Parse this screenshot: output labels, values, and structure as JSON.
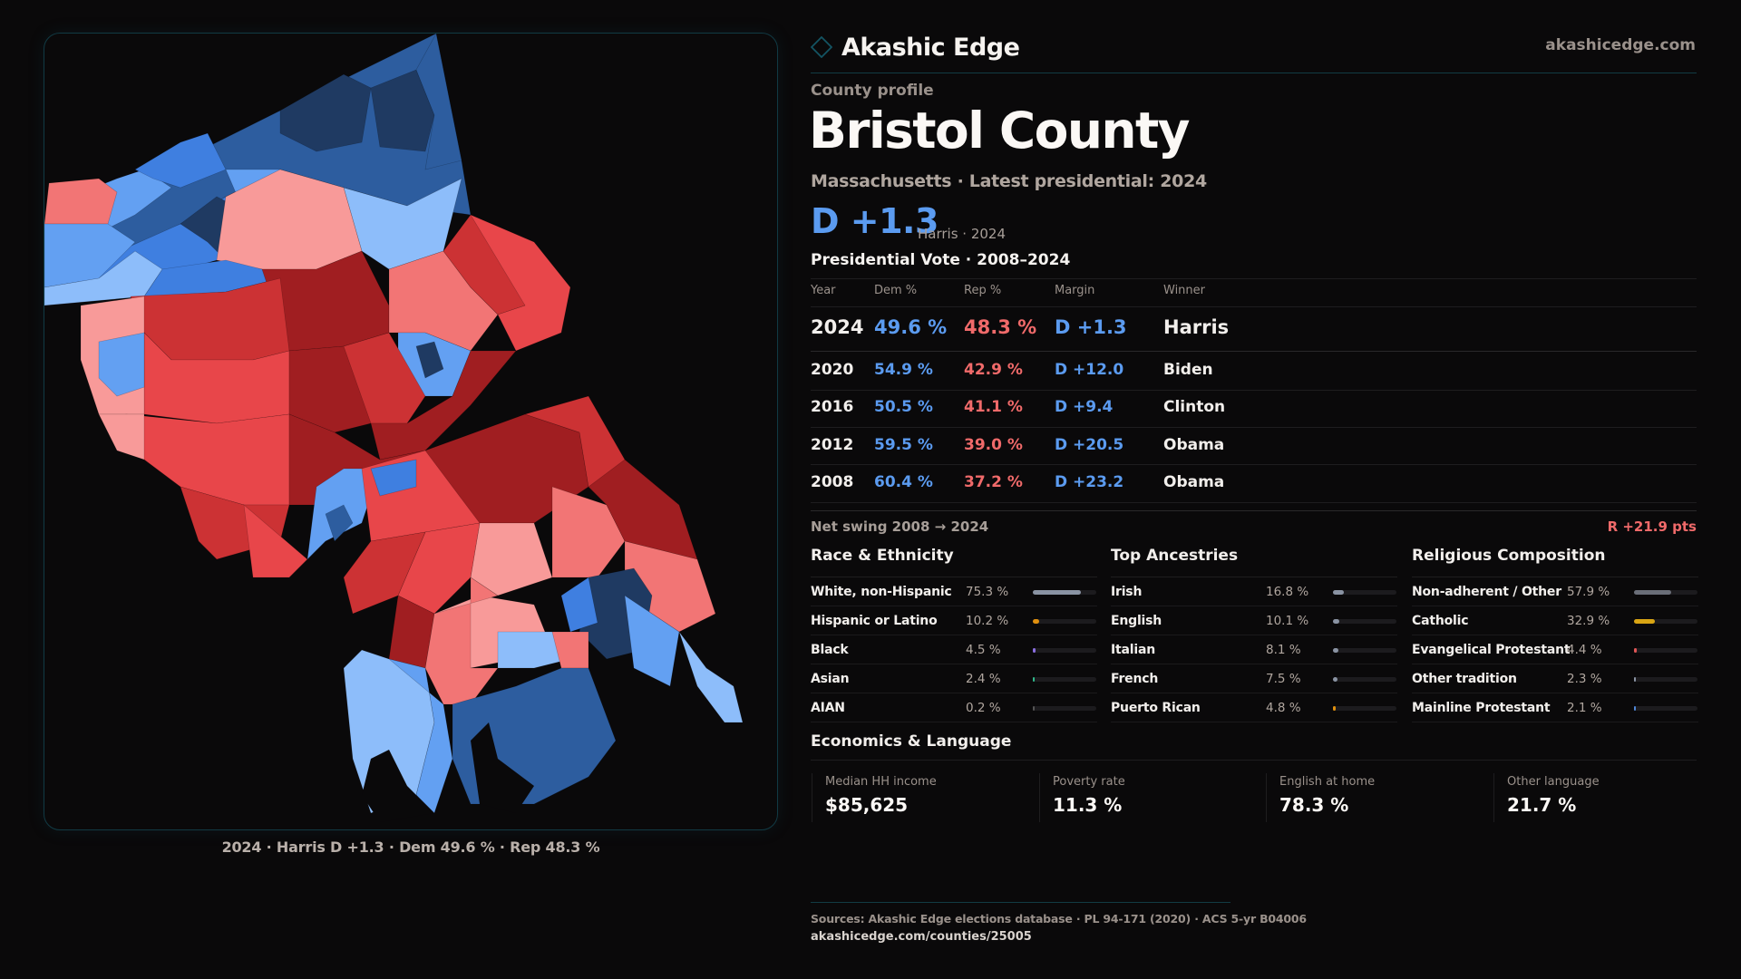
{
  "brand": {
    "name": "Akashic Edge",
    "url": "akashicedge.com",
    "logo_icon": "diamond-outline-icon",
    "accent": "#123c44"
  },
  "header": {
    "eyebrow": "County profile",
    "title": "Bristol County",
    "subtitle": "Massachusetts · Latest presidential: 2024",
    "margin": "D +1.3",
    "margin_sub": "Harris · 2024"
  },
  "colors": {
    "dem": "#5b9bf0",
    "rep": "#f06a6a"
  },
  "votes": {
    "title": "Presidential Vote · 2008–2024",
    "headers": [
      "Year",
      "Dem %",
      "Rep %",
      "Margin",
      "Winner"
    ],
    "rows": [
      {
        "year": "2024",
        "dem": "49.6 %",
        "rep": "48.3 %",
        "margin": "D +1.3",
        "winner": "Harris"
      },
      {
        "year": "2020",
        "dem": "54.9 %",
        "rep": "42.9 %",
        "margin": "D +12.0",
        "winner": "Biden"
      },
      {
        "year": "2016",
        "dem": "50.5 %",
        "rep": "41.1 %",
        "margin": "D +9.4",
        "winner": "Clinton"
      },
      {
        "year": "2012",
        "dem": "59.5 %",
        "rep": "39.0 %",
        "margin": "D +20.5",
        "winner": "Obama"
      },
      {
        "year": "2008",
        "dem": "60.4 %",
        "rep": "37.2 %",
        "margin": "D +23.2",
        "winner": "Obama"
      }
    ],
    "swing_label": "Net swing 2008 → 2024",
    "swing_value": "R +21.9 pts"
  },
  "race": {
    "title": "Race & Ethnicity",
    "items": [
      {
        "label": "White, non-Hispanic",
        "value": "75.3 %",
        "pct": 75.3,
        "color": "#8a93a3"
      },
      {
        "label": "Hispanic or Latino",
        "value": "10.2 %",
        "pct": 10.2,
        "color": "#e0900f"
      },
      {
        "label": "Black",
        "value": "4.5 %",
        "pct": 4.5,
        "color": "#8a6ee0"
      },
      {
        "label": "Asian",
        "value": "2.4 %",
        "pct": 2.4,
        "color": "#2fb88a"
      },
      {
        "label": "AIAN",
        "value": "0.2 %",
        "pct": 0.2,
        "color": "#555"
      }
    ]
  },
  "ancestry": {
    "title": "Top Ancestries",
    "items": [
      {
        "label": "Irish",
        "value": "16.8 %",
        "pct": 16.8,
        "color": "#8a93a3"
      },
      {
        "label": "English",
        "value": "10.1 %",
        "pct": 10.1,
        "color": "#8a93a3"
      },
      {
        "label": "Italian",
        "value": "8.1 %",
        "pct": 8.1,
        "color": "#8a93a3"
      },
      {
        "label": "French",
        "value": "7.5 %",
        "pct": 7.5,
        "color": "#8a93a3"
      },
      {
        "label": "Puerto Rican",
        "value": "4.8 %",
        "pct": 4.8,
        "color": "#e0900f"
      }
    ]
  },
  "religion": {
    "title": "Religious Composition",
    "items": [
      {
        "label": "Non-adherent / Other",
        "value": "57.9 %",
        "pct": 57.9,
        "color": "#6a6e78"
      },
      {
        "label": "Catholic",
        "value": "32.9 %",
        "pct": 32.9,
        "color": "#d9a514"
      },
      {
        "label": "Evangelical Protestant",
        "value": "4.4 %",
        "pct": 4.4,
        "color": "#e05555"
      },
      {
        "label": "Other tradition",
        "value": "2.3 %",
        "pct": 2.3,
        "color": "#8a93a3"
      },
      {
        "label": "Mainline Protestant",
        "value": "2.1 %",
        "pct": 2.1,
        "color": "#4f86d6"
      }
    ]
  },
  "economics": {
    "title": "Economics & Language",
    "stats": [
      {
        "label": "Median HH income",
        "value": "$85,625"
      },
      {
        "label": "Poverty rate",
        "value": "11.3 %"
      },
      {
        "label": "English at home",
        "value": "78.3 %"
      },
      {
        "label": "Other language",
        "value": "21.7 %"
      }
    ]
  },
  "map": {
    "caption": "2024 · Harris D +1.3 · Dem 49.6 % · Rep 48.3 %",
    "palette": {
      "dem_dark": "#1f3a62",
      "dem_mid": "#2d5d9f",
      "dem": "#3f7fe0",
      "dem_light": "#63a0f2",
      "dem_pale": "#8dbdfa",
      "rep_pale": "#f89a99",
      "rep_light": "#f27575",
      "rep": "#e8464a",
      "rep_mid": "#cc3234",
      "rep_dark": "#a01e21"
    }
  },
  "footer": {
    "sources": "Sources: Akashic Edge elections database · PL 94-171 (2020) · ACS 5-yr B04006",
    "permalink": "akashicedge.com/counties/25005"
  }
}
